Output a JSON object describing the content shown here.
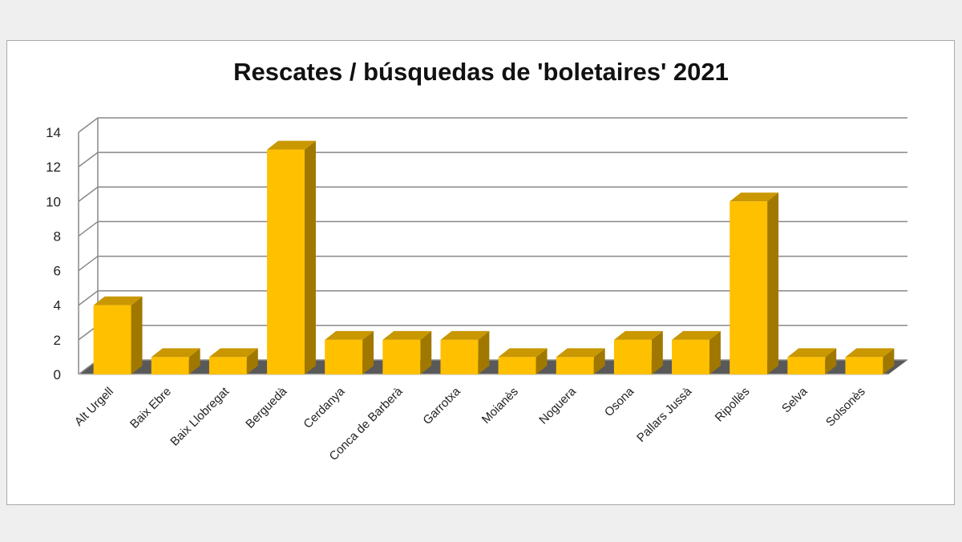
{
  "chart_data": {
    "type": "bar",
    "title": "Rescates / búsquedas de 'boletaires' 2021",
    "xlabel": "",
    "ylabel": "",
    "categories": [
      "Alt Urgell",
      "Baix Ebre",
      "Baix Llobregat",
      "Berguedà",
      "Cerdanya",
      "Conca de Barberà",
      "Garrotxa",
      "Moianès",
      "Noguera",
      "Osona",
      "Pallars Jussà",
      "Ripollès",
      "Selva",
      "Solsonès"
    ],
    "values": [
      4,
      1,
      1,
      13,
      2,
      2,
      2,
      1,
      1,
      2,
      2,
      10,
      1,
      1
    ],
    "ylim": [
      0,
      14
    ],
    "yticks": [
      0,
      2,
      4,
      6,
      8,
      10,
      12,
      14
    ],
    "grid": true,
    "legend": "none",
    "style": "3d-column",
    "colors": {
      "bar_front": "#ffc000",
      "bar_top": "#c99700",
      "bar_side": "#a07800",
      "floor": "#595959",
      "grid": "#888888"
    }
  }
}
